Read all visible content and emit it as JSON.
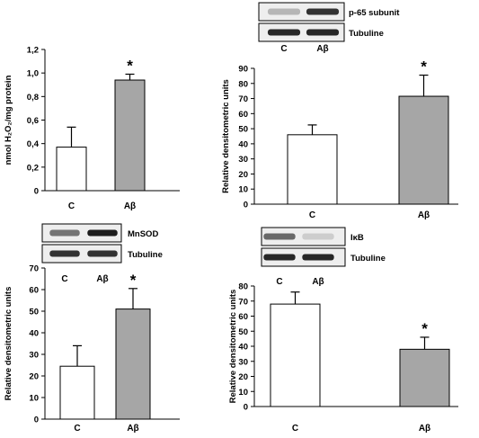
{
  "chart_data": [
    {
      "id": "h2o2",
      "type": "bar",
      "ylabel": "nmol H₂O₂/mg protein",
      "ylim": [
        0,
        1.2
      ],
      "yticks": [
        "0",
        "0,2",
        "0,4",
        "0,6",
        "0,8",
        "1,0",
        "1,2"
      ],
      "tick_values": [
        0,
        0.2,
        0.4,
        0.6,
        0.8,
        1.0,
        1.2
      ],
      "categories": [
        "C",
        "Aβ"
      ],
      "values": [
        0.37,
        0.94
      ],
      "errors": [
        0.17,
        0.05
      ],
      "bar_colors": [
        "#ffffff",
        "#a6a6a6"
      ],
      "annotations": [
        "",
        "*"
      ],
      "blot": null
    },
    {
      "id": "p65",
      "type": "bar",
      "ylabel": "Relative densitometric units",
      "ylim": [
        0,
        90
      ],
      "yticks": [
        "0",
        "10",
        "20",
        "30",
        "40",
        "50",
        "60",
        "70",
        "80",
        "90"
      ],
      "tick_values": [
        0,
        10,
        20,
        30,
        40,
        50,
        60,
        70,
        80,
        90
      ],
      "categories": [
        "C",
        "Aβ"
      ],
      "values": [
        46,
        71.5
      ],
      "errors": [
        6.5,
        14
      ],
      "bar_colors": [
        "#ffffff",
        "#a6a6a6"
      ],
      "annotations": [
        "",
        "*"
      ],
      "blot": {
        "rows": [
          "p-65 subunit",
          "Tubuline"
        ],
        "lanes": [
          "C",
          "Aβ"
        ],
        "row_intensity": [
          [
            0.25,
            0.85
          ],
          [
            0.9,
            0.9
          ]
        ]
      }
    },
    {
      "id": "mnsod",
      "type": "bar",
      "ylabel": "Relative densitometric units",
      "ylim": [
        0,
        70
      ],
      "yticks": [
        "0",
        "10",
        "20",
        "30",
        "40",
        "50",
        "60",
        "70"
      ],
      "tick_values": [
        0,
        10,
        20,
        30,
        40,
        50,
        60,
        70
      ],
      "categories": [
        "C",
        "Aβ"
      ],
      "values": [
        24.5,
        51
      ],
      "errors": [
        9.5,
        9.5
      ],
      "bar_colors": [
        "#ffffff",
        "#a6a6a6"
      ],
      "annotations": [
        "",
        "*"
      ],
      "blot": {
        "rows": [
          "MnSOD",
          "Tubuline"
        ],
        "lanes": [
          "C",
          "Aβ"
        ],
        "row_intensity": [
          [
            0.55,
            0.95
          ],
          [
            0.85,
            0.85
          ]
        ]
      }
    },
    {
      "id": "ikb",
      "type": "bar",
      "ylabel": "Relative densitometric units",
      "ylim": [
        0,
        80
      ],
      "yticks": [
        "0",
        "10",
        "20",
        "30",
        "40",
        "50",
        "60",
        "70",
        "80"
      ],
      "tick_values": [
        0,
        10,
        20,
        30,
        40,
        50,
        60,
        70,
        80
      ],
      "categories": [
        "C",
        "Aβ"
      ],
      "values": [
        68,
        38
      ],
      "errors": [
        8,
        8
      ],
      "bar_colors": [
        "#ffffff",
        "#a6a6a6"
      ],
      "annotations": [
        "",
        "*"
      ],
      "blot": {
        "rows": [
          "IκB",
          "Tubuline"
        ],
        "lanes": [
          "C",
          "Aβ"
        ],
        "row_intensity": [
          [
            0.6,
            0.15
          ],
          [
            0.9,
            0.9
          ]
        ]
      }
    }
  ]
}
